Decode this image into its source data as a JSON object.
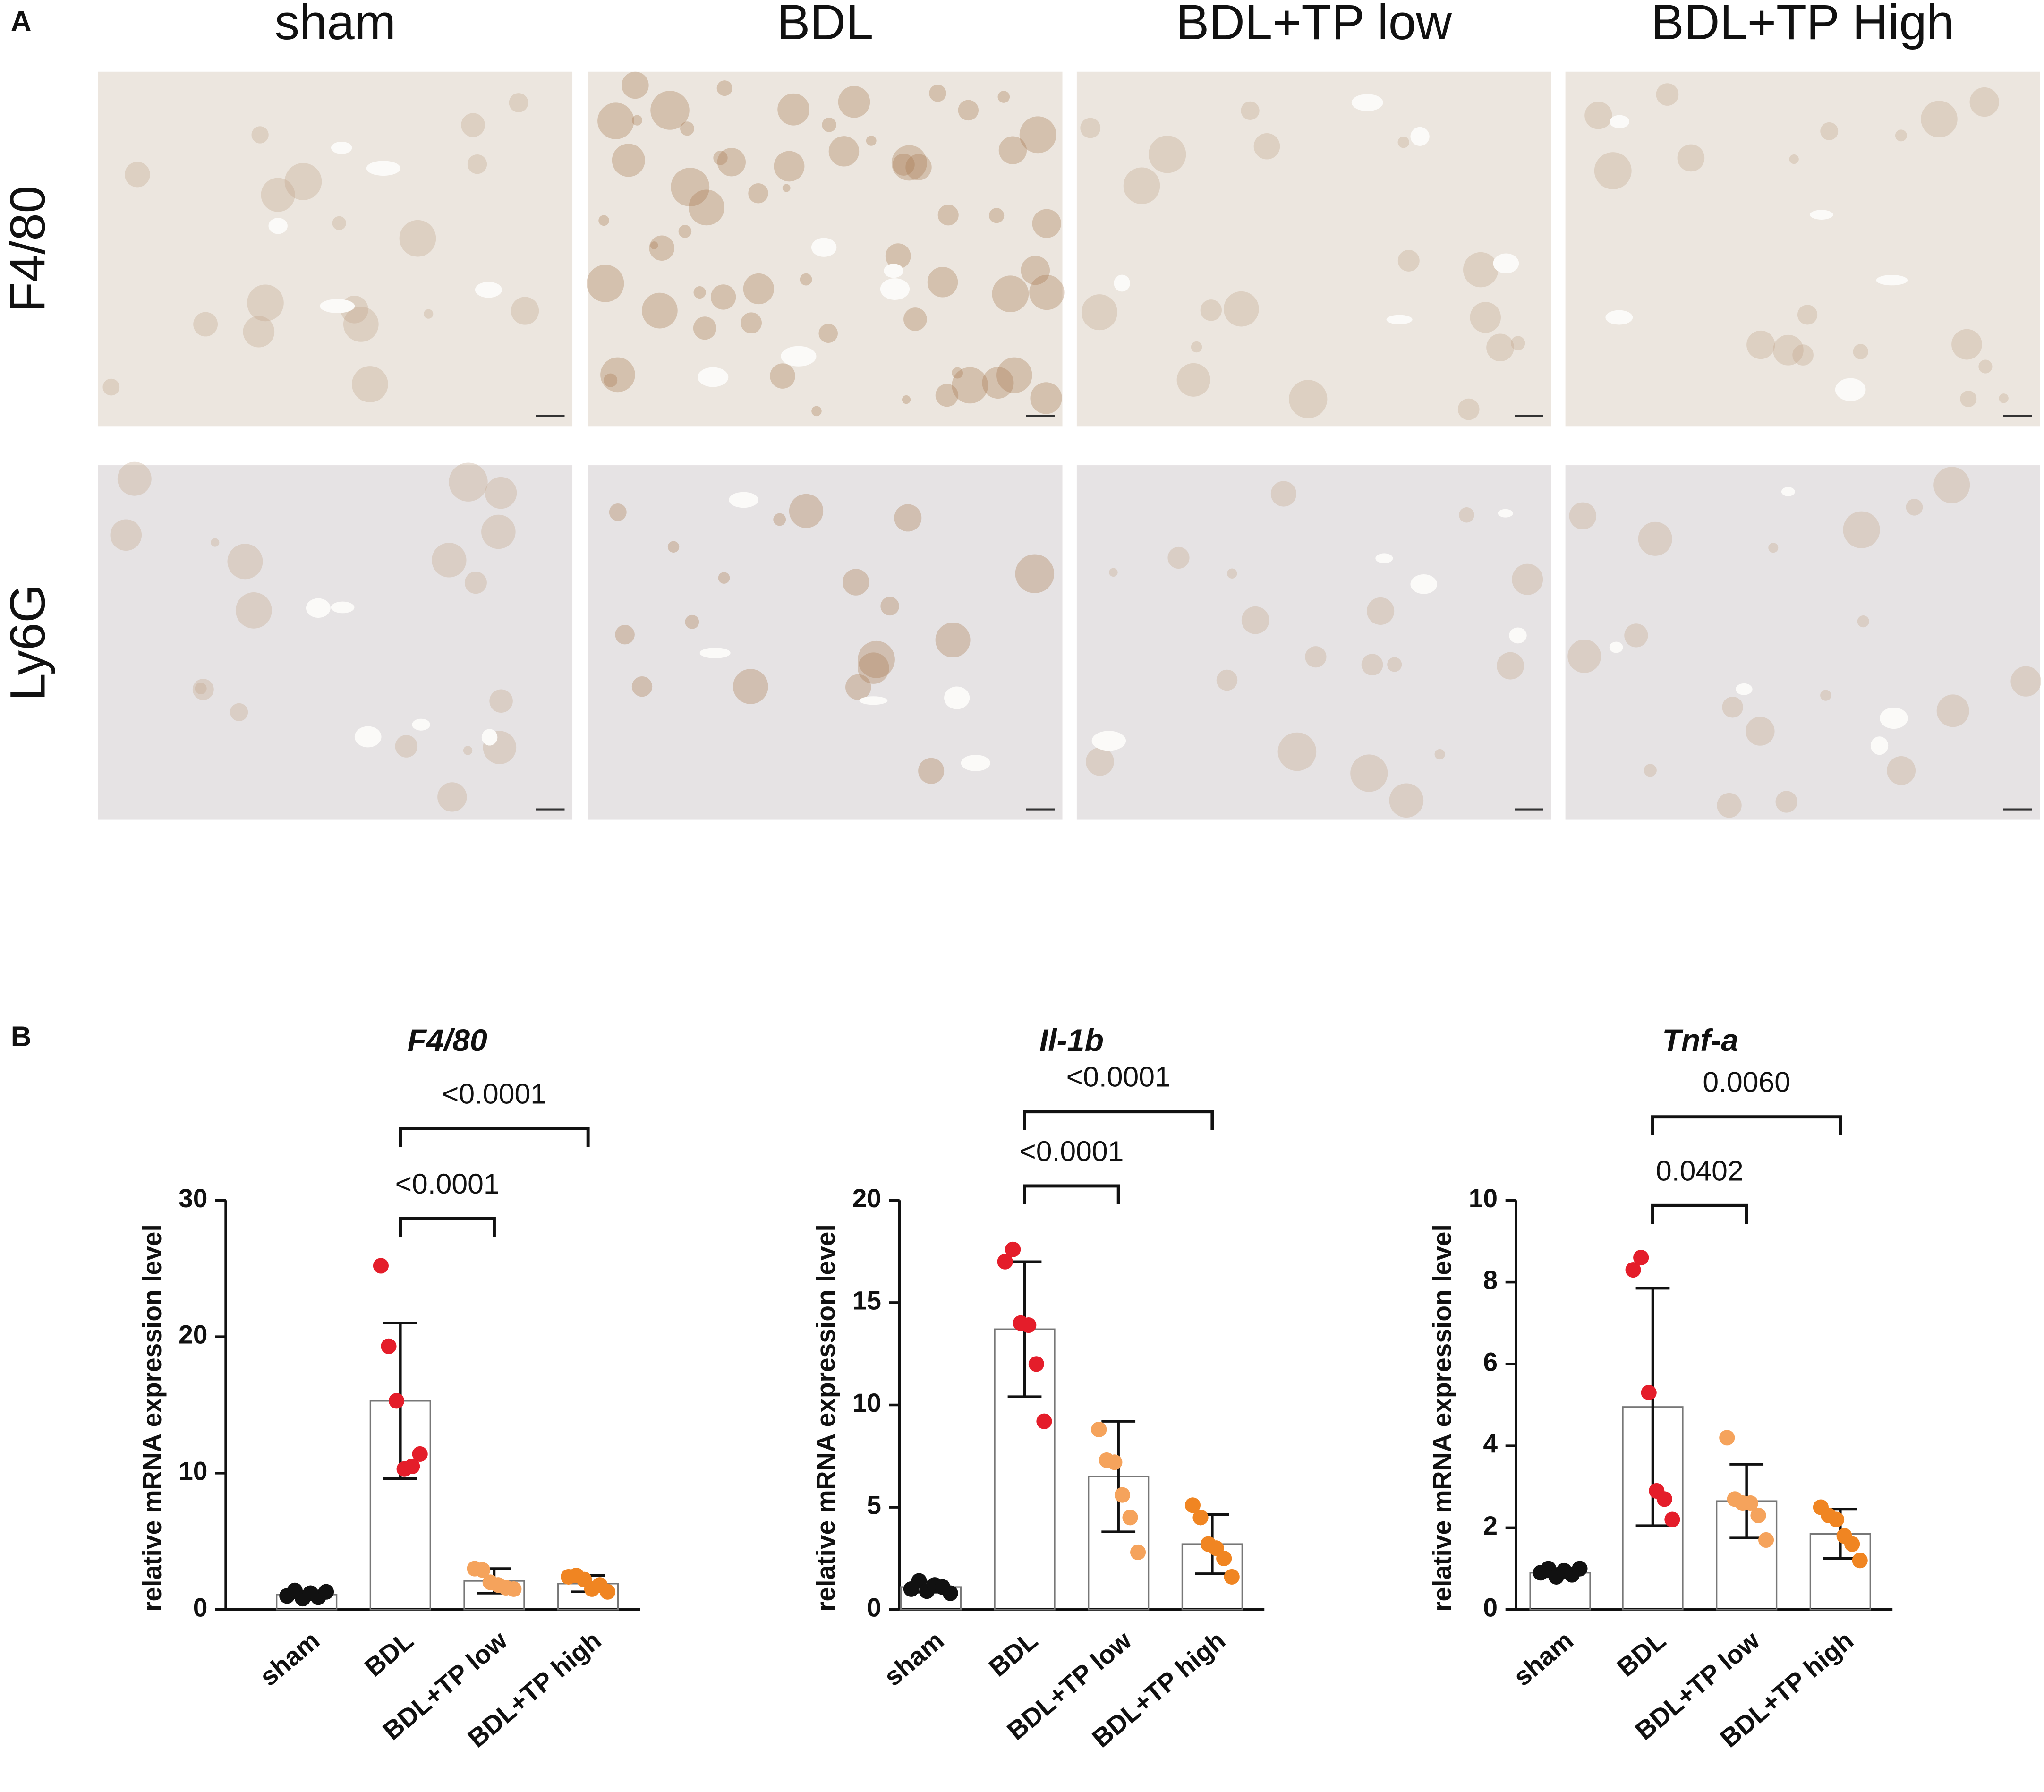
{
  "panel_labels": [
    "A",
    "B"
  ],
  "panel_a": {
    "columns": [
      "sham",
      "BDL",
      "BDL+TP low",
      "BDL+TP High"
    ],
    "rows": [
      "F4/80",
      "Ly6G"
    ]
  },
  "chart_data": [
    {
      "type": "bar",
      "title": "F4/80",
      "y_label": "relative mRNA expression level",
      "categories": [
        "sham",
        "BDL",
        "BDL+TP low",
        "BDL+TP high"
      ],
      "values": [
        1.1,
        15.3,
        2.1,
        1.9
      ],
      "errors": [
        0.25,
        5.7,
        0.9,
        0.6
      ],
      "points": [
        [
          1.0,
          1.4,
          0.8,
          1.2,
          0.9,
          1.3
        ],
        [
          25.2,
          19.3,
          15.3,
          10.3,
          10.5,
          11.4
        ],
        [
          3.0,
          2.9,
          2.0,
          1.8,
          1.6,
          1.5
        ],
        [
          2.4,
          2.5,
          2.2,
          1.5,
          1.8,
          1.3
        ]
      ],
      "colors": [
        "#111111",
        "#e41d2a",
        "#f5a35c",
        "#f08522"
      ],
      "annotations": [
        "<0.0001",
        "<0.0001"
      ],
      "ylim": [
        0,
        30
      ],
      "yticks": [
        0,
        10,
        20,
        30
      ]
    },
    {
      "type": "bar",
      "title": "Il-1b",
      "y_label": "relative mRNA expression level",
      "categories": [
        "sham",
        "BDL",
        "BDL+TP low",
        "BDL+TP high"
      ],
      "values": [
        1.1,
        13.7,
        6.5,
        3.2
      ],
      "errors": [
        0.25,
        3.3,
        2.7,
        1.45
      ],
      "points": [
        [
          1.0,
          1.4,
          0.9,
          1.2,
          1.1,
          0.8
        ],
        [
          17.0,
          17.6,
          14.0,
          13.9,
          12.0,
          9.2
        ],
        [
          8.8,
          7.3,
          7.2,
          5.6,
          4.5,
          2.8
        ],
        [
          5.1,
          4.5,
          3.2,
          3.0,
          2.5,
          1.6
        ]
      ],
      "colors": [
        "#111111",
        "#e41d2a",
        "#f5a35c",
        "#f08522"
      ],
      "annotations": [
        "<0.0001",
        "<0.0001"
      ],
      "ylim": [
        0,
        20
      ],
      "yticks": [
        0,
        5,
        10,
        15,
        20
      ]
    },
    {
      "type": "bar",
      "title": "Tnf-a",
      "y_label": "relative mRNA expression level",
      "categories": [
        "sham",
        "BDL",
        "BDL+TP low",
        "BDL+TP high"
      ],
      "values": [
        0.9,
        4.95,
        2.65,
        1.85
      ],
      "errors": [
        0.1,
        2.9,
        0.9,
        0.6
      ],
      "points": [
        [
          0.9,
          1.0,
          0.8,
          0.95,
          0.85,
          1.0
        ],
        [
          8.3,
          8.6,
          5.3,
          2.9,
          2.7,
          2.2
        ],
        [
          4.2,
          2.7,
          2.6,
          2.6,
          2.3,
          1.7
        ],
        [
          2.5,
          2.3,
          2.2,
          1.8,
          1.6,
          1.2
        ]
      ],
      "colors": [
        "#111111",
        "#e41d2a",
        "#f5a35c",
        "#f08522"
      ],
      "annotations": [
        "0.0402",
        "0.0060"
      ],
      "ylim": [
        0,
        10
      ],
      "yticks": [
        0,
        2,
        4,
        6,
        8,
        10
      ]
    }
  ]
}
